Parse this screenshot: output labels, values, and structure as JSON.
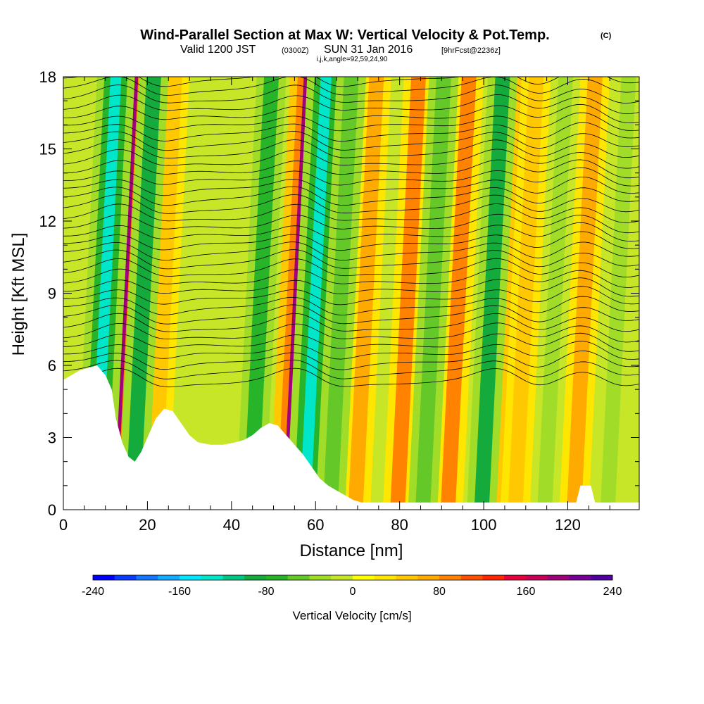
{
  "title": {
    "main": "Wind-Parallel Section at Max W: Vertical Velocity & Pot.Temp.",
    "copyright": "(C)",
    "valid_a": "Valid 1200 JST",
    "valid_b": "(0300Z)",
    "valid_c": "SUN 31 Jan 2016",
    "valid_d": "[9hrFcst@2236z]",
    "grid_info": "i,j,k,angle=92,59,24,90"
  },
  "chart_data": {
    "type": "heatmap",
    "xlabel": "Distance [nm]",
    "ylabel": "Height [Kft MSL]",
    "xlim": [
      0,
      137
    ],
    "ylim": [
      0,
      18
    ],
    "xticks": [
      "0",
      "20",
      "40",
      "60",
      "80",
      "100",
      "120"
    ],
    "yticks": [
      "0",
      "3",
      "6",
      "9",
      "12",
      "15",
      "18"
    ],
    "grid": false,
    "colorbar": {
      "label": "Vertical Velocity [cm/s]",
      "range": [
        -240,
        240
      ],
      "tick_labels": [
        "-240",
        "-160",
        "-80",
        "0",
        "80",
        "160",
        "240"
      ],
      "colors": [
        "#0000ff",
        "#0a3cff",
        "#1478ff",
        "#14aaff",
        "#00e6ff",
        "#00e6c8",
        "#00c882",
        "#14aa3c",
        "#28b428",
        "#64c828",
        "#a0dc28",
        "#c8e628",
        "#ffff00",
        "#ffe600",
        "#ffc800",
        "#ffaa00",
        "#ff8200",
        "#ff5000",
        "#ff2800",
        "#e6003c",
        "#c8005a",
        "#a00078",
        "#78009a",
        "#5000a0"
      ]
    },
    "updraft_cores": [
      {
        "x": 14,
        "strength": 180
      },
      {
        "x": 24,
        "strength": 50
      },
      {
        "x": 56,
        "strength": 180
      },
      {
        "x": 72,
        "strength": 60
      },
      {
        "x": 82,
        "strength": 90
      },
      {
        "x": 94,
        "strength": 80
      },
      {
        "x": 105,
        "strength": 40
      },
      {
        "x": 110,
        "strength": 50
      },
      {
        "x": 124,
        "strength": 60
      }
    ],
    "downdraft_cores": [
      {
        "x": 10,
        "strength": -130
      },
      {
        "x": 19,
        "strength": -90
      },
      {
        "x": 47,
        "strength": -80
      },
      {
        "x": 60,
        "strength": -140
      },
      {
        "x": 66,
        "strength": -60
      },
      {
        "x": 88,
        "strength": -60
      },
      {
        "x": 102,
        "strength": -90
      },
      {
        "x": 117,
        "strength": -40
      },
      {
        "x": 132,
        "strength": -40
      }
    ],
    "terrain": [
      [
        0,
        5.4
      ],
      [
        4,
        5.8
      ],
      [
        8,
        6.0
      ],
      [
        10,
        5.6
      ],
      [
        11.5,
        5.0
      ],
      [
        12.5,
        3.8
      ],
      [
        14,
        2.8
      ],
      [
        15.5,
        2.2
      ],
      [
        17,
        2.0
      ],
      [
        18.5,
        2.4
      ],
      [
        20,
        3.0
      ],
      [
        22,
        3.8
      ],
      [
        24,
        4.2
      ],
      [
        26,
        4.1
      ],
      [
        28,
        3.6
      ],
      [
        30,
        3.1
      ],
      [
        32,
        2.8
      ],
      [
        35,
        2.7
      ],
      [
        38,
        2.7
      ],
      [
        41,
        2.8
      ],
      [
        43,
        2.9
      ],
      [
        45,
        3.1
      ],
      [
        47,
        3.4
      ],
      [
        49,
        3.6
      ],
      [
        51,
        3.5
      ],
      [
        53,
        3.1
      ],
      [
        55,
        2.7
      ],
      [
        57,
        2.3
      ],
      [
        59,
        1.8
      ],
      [
        61,
        1.3
      ],
      [
        63,
        1.0
      ],
      [
        65,
        0.8
      ],
      [
        67,
        0.6
      ],
      [
        69,
        0.4
      ],
      [
        71,
        0.3
      ],
      [
        122,
        0.3
      ],
      [
        123,
        1.0
      ],
      [
        125.5,
        1.0
      ],
      [
        126.5,
        0.3
      ],
      [
        137,
        0.3
      ]
    ]
  }
}
